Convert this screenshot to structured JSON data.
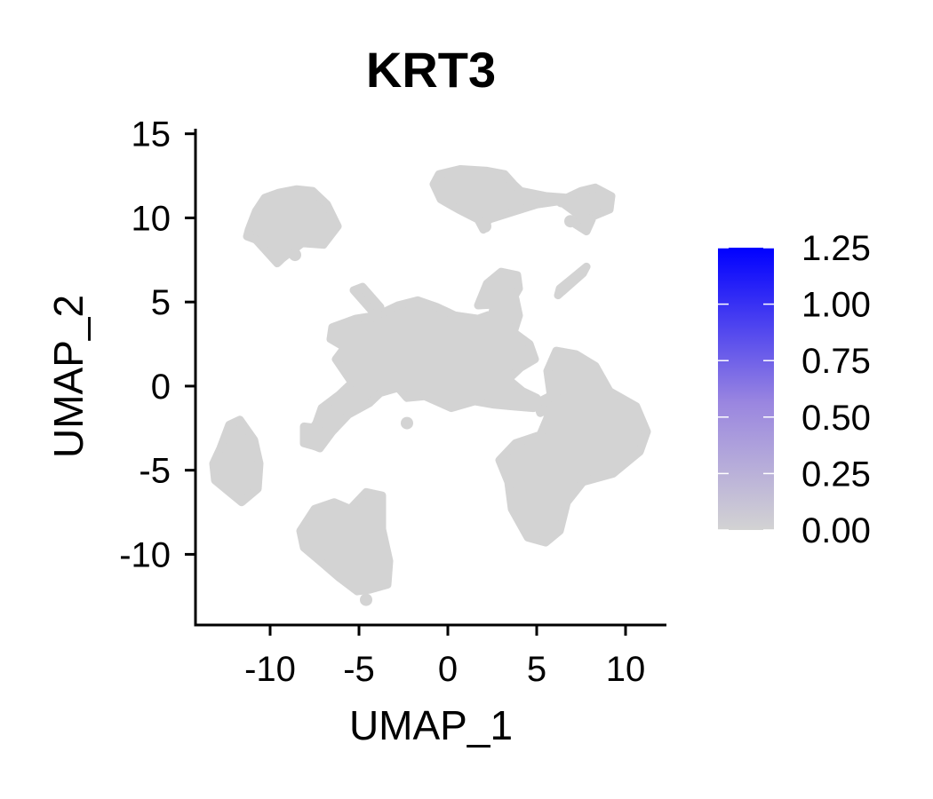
{
  "chart_data": {
    "type": "scatter",
    "title": "KRT3",
    "xlabel": "UMAP_1",
    "ylabel": "UMAP_2",
    "xlim": [
      -14.2,
      12.3
    ],
    "ylim": [
      -14.2,
      15.3
    ],
    "x_ticks": [
      -10,
      -5,
      0,
      5,
      10
    ],
    "x_tick_labels": [
      "-10",
      "-5",
      "0",
      "5",
      "10"
    ],
    "y_ticks": [
      15,
      10,
      5,
      0,
      -5,
      -10
    ],
    "y_tick_labels": [
      "15",
      "10",
      "5",
      "0",
      "-5",
      "-10"
    ],
    "point_color": "#d3d3d3",
    "all_cells_expression": 0,
    "colorbar": {
      "min": 0,
      "max": 1.25,
      "low_color": "#d3d3d3",
      "high_color": "#0000ff",
      "ticks": [
        1.25,
        1.0,
        0.75,
        0.5,
        0.25,
        0.0
      ],
      "tick_labels": [
        "1.25",
        "1.00",
        "0.75",
        "0.50",
        "0.25",
        "0.00"
      ],
      "position": "right"
    },
    "clusters": [
      {
        "label": "top-left",
        "points": [
          [
            -11.2,
            9.3
          ],
          [
            -10.8,
            10.4
          ],
          [
            -10.3,
            11.2
          ],
          [
            -9.5,
            11.5
          ],
          [
            -8.5,
            11.7
          ],
          [
            -7.6,
            11.6
          ],
          [
            -6.8,
            10.8
          ],
          [
            -6.2,
            9.5
          ],
          [
            -7.0,
            8.4
          ],
          [
            -8.2,
            8.5
          ],
          [
            -9.3,
            7.6
          ],
          [
            -9.6,
            7.3
          ],
          [
            -10.2,
            8.0
          ],
          [
            -10.8,
            8.7
          ],
          [
            -11.3,
            8.9
          ]
        ]
      },
      {
        "label": "top-right-blob",
        "points": [
          [
            -0.8,
            12.0
          ],
          [
            -0.5,
            12.6
          ],
          [
            0.7,
            12.9
          ],
          [
            2.2,
            12.8
          ],
          [
            3.2,
            12.6
          ],
          [
            3.7,
            12.0
          ],
          [
            4.1,
            11.6
          ],
          [
            5.5,
            11.3
          ],
          [
            6.7,
            11.2
          ],
          [
            7.5,
            11.6
          ],
          [
            8.3,
            11.8
          ],
          [
            9.2,
            11.3
          ],
          [
            9.1,
            10.5
          ],
          [
            8.2,
            10.1
          ],
          [
            7.2,
            10.3
          ],
          [
            6.3,
            11.0
          ],
          [
            5.0,
            10.8
          ],
          [
            3.5,
            10.3
          ],
          [
            2.3,
            9.9
          ],
          [
            2.0,
            9.3
          ],
          [
            1.7,
            9.9
          ],
          [
            0.6,
            10.5
          ],
          [
            -0.4,
            11.1
          ]
        ]
      },
      {
        "label": "top-right-tail",
        "points": [
          [
            7.4,
            10.2
          ],
          [
            8.1,
            9.9
          ],
          [
            7.8,
            9.2
          ],
          [
            7.2,
            9.6
          ]
        ]
      },
      {
        "label": "small-streak",
        "points": [
          [
            6.3,
            5.8
          ],
          [
            7.8,
            7.1
          ],
          [
            7.6,
            6.7
          ],
          [
            6.2,
            5.4
          ]
        ]
      },
      {
        "label": "central",
        "points": [
          [
            -6.5,
            3.5
          ],
          [
            -5.2,
            4.0
          ],
          [
            -4.0,
            4.2
          ],
          [
            -2.8,
            4.8
          ],
          [
            -1.7,
            5.1
          ],
          [
            -0.6,
            4.7
          ],
          [
            0.4,
            4.2
          ],
          [
            1.7,
            4.0
          ],
          [
            2.5,
            4.3
          ],
          [
            2.6,
            4.9
          ],
          [
            3.8,
            5.2
          ],
          [
            4.0,
            4.2
          ],
          [
            3.7,
            3.2
          ],
          [
            4.6,
            2.5
          ],
          [
            4.9,
            1.6
          ],
          [
            4.1,
            1.1
          ],
          [
            3.4,
            0.4
          ],
          [
            4.2,
            -0.3
          ],
          [
            5.0,
            -0.7
          ],
          [
            4.8,
            -1.3
          ],
          [
            3.6,
            -1.2
          ],
          [
            2.6,
            -1.1
          ],
          [
            1.5,
            -0.9
          ],
          [
            0.2,
            -1.3
          ],
          [
            -1.3,
            -0.6
          ],
          [
            -2.3,
            -0.7
          ],
          [
            -2.8,
            -0.1
          ],
          [
            -3.8,
            -0.4
          ],
          [
            -4.4,
            -1.0
          ],
          [
            -5.6,
            -1.7
          ],
          [
            -6.5,
            -2.7
          ],
          [
            -7.2,
            -3.7
          ],
          [
            -8.1,
            -3.3
          ],
          [
            -7.4,
            -2.2
          ],
          [
            -7.1,
            -1.3
          ],
          [
            -6.1,
            -0.5
          ],
          [
            -5.4,
            0.2
          ],
          [
            -6.3,
            1.6
          ],
          [
            -5.8,
            2.3
          ],
          [
            -6.6,
            2.8
          ]
        ]
      },
      {
        "label": "central-top-lobe",
        "points": [
          [
            1.7,
            4.8
          ],
          [
            2.2,
            6.1
          ],
          [
            3.0,
            6.8
          ],
          [
            3.9,
            6.6
          ],
          [
            4.0,
            5.8
          ],
          [
            3.5,
            4.9
          ]
        ]
      },
      {
        "label": "central-spike",
        "points": [
          [
            -5.3,
            5.7
          ],
          [
            -4.8,
            5.9
          ],
          [
            -3.8,
            4.7
          ],
          [
            -4.3,
            4.5
          ]
        ]
      },
      {
        "label": "right-large",
        "points": [
          [
            6.1,
            2.1
          ],
          [
            7.2,
            1.9
          ],
          [
            8.3,
            1.2
          ],
          [
            9.1,
            -0.3
          ],
          [
            10.6,
            -1.2
          ],
          [
            11.2,
            -2.7
          ],
          [
            10.8,
            -3.9
          ],
          [
            9.3,
            -5.2
          ],
          [
            7.6,
            -5.7
          ],
          [
            6.7,
            -6.9
          ],
          [
            6.3,
            -8.6
          ],
          [
            5.5,
            -9.3
          ],
          [
            4.5,
            -9.0
          ],
          [
            3.6,
            -7.3
          ],
          [
            3.4,
            -5.7
          ],
          [
            2.9,
            -4.4
          ],
          [
            3.8,
            -3.4
          ],
          [
            5.2,
            -2.9
          ],
          [
            5.6,
            -1.9
          ],
          [
            5.8,
            -0.6
          ],
          [
            5.6,
            0.9
          ]
        ]
      },
      {
        "label": "right-spur",
        "points": [
          [
            6.0,
            -1.2
          ],
          [
            6.1,
            -0.4
          ],
          [
            5.0,
            -1.0
          ],
          [
            5.2,
            -1.6
          ]
        ]
      },
      {
        "label": "left-small",
        "points": [
          [
            -12.8,
            -3.7
          ],
          [
            -12.3,
            -2.3
          ],
          [
            -11.7,
            -2.0
          ],
          [
            -10.9,
            -3.2
          ],
          [
            -10.6,
            -4.6
          ],
          [
            -10.7,
            -6.1
          ],
          [
            -11.6,
            -6.9
          ],
          [
            -12.3,
            -6.3
          ],
          [
            -13.1,
            -5.6
          ],
          [
            -13.2,
            -4.6
          ]
        ]
      },
      {
        "label": "bottom",
        "points": [
          [
            -8.3,
            -8.6
          ],
          [
            -7.5,
            -7.3
          ],
          [
            -6.4,
            -6.9
          ],
          [
            -5.5,
            -7.3
          ],
          [
            -4.6,
            -6.3
          ],
          [
            -3.7,
            -6.5
          ],
          [
            -3.7,
            -8.5
          ],
          [
            -3.3,
            -10.4
          ],
          [
            -3.4,
            -11.8
          ],
          [
            -4.4,
            -12.1
          ],
          [
            -5.1,
            -12.2
          ],
          [
            -6.1,
            -11.4
          ],
          [
            -7.2,
            -10.4
          ],
          [
            -8.1,
            -9.6
          ]
        ]
      },
      {
        "label": "mid-left-dot",
        "points": [
          [
            -8.1,
            -2.4
          ],
          [
            -7.3,
            -2.5
          ],
          [
            -7.4,
            -3.6
          ],
          [
            -8.1,
            -3.4
          ]
        ]
      }
    ],
    "outliers": [
      [
        -2.3,
        -2.2
      ],
      [
        6.4,
        11.0
      ],
      [
        2.1,
        9.5
      ],
      [
        -4.6,
        -12.7
      ],
      [
        -8.6,
        7.8
      ],
      [
        6.9,
        9.8
      ],
      [
        -4.1,
        4.2
      ]
    ]
  }
}
